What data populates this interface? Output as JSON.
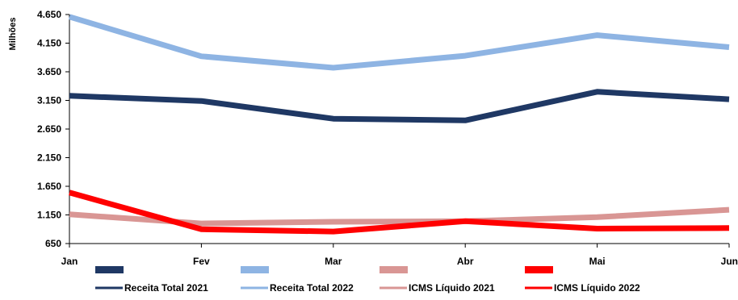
{
  "chart_data": {
    "type": "line",
    "ylabel": "Milhões",
    "categories": [
      "Jan",
      "Fev",
      "Mar",
      "Abr",
      "Mai",
      "Jun"
    ],
    "ylim": [
      650,
      4650
    ],
    "yticks": [
      "650",
      "1.150",
      "1.650",
      "2.150",
      "2.650",
      "3.150",
      "3.650",
      "4.150",
      "4.650"
    ],
    "ytick_values": [
      650,
      1150,
      1650,
      2150,
      2650,
      3150,
      3650,
      4150,
      4650
    ],
    "grid": false,
    "legend_placement": "bottom",
    "series": [
      {
        "name": "Receita Total 2021",
        "color": "#1f3864",
        "values": [
          3230,
          3140,
          2830,
          2800,
          3300,
          3170
        ]
      },
      {
        "name": "Receita Total 2022",
        "color": "#8eb4e3",
        "values": [
          4610,
          3920,
          3720,
          3930,
          4290,
          4080
        ]
      },
      {
        "name": "ICMS Líquido  2021",
        "color": "#d99694",
        "values": [
          1160,
          1000,
          1030,
          1040,
          1110,
          1240
        ]
      },
      {
        "name": "ICMS Líquido  2022",
        "color": "#ff0000",
        "values": [
          1540,
          900,
          860,
          1040,
          910,
          920
        ]
      }
    ]
  }
}
